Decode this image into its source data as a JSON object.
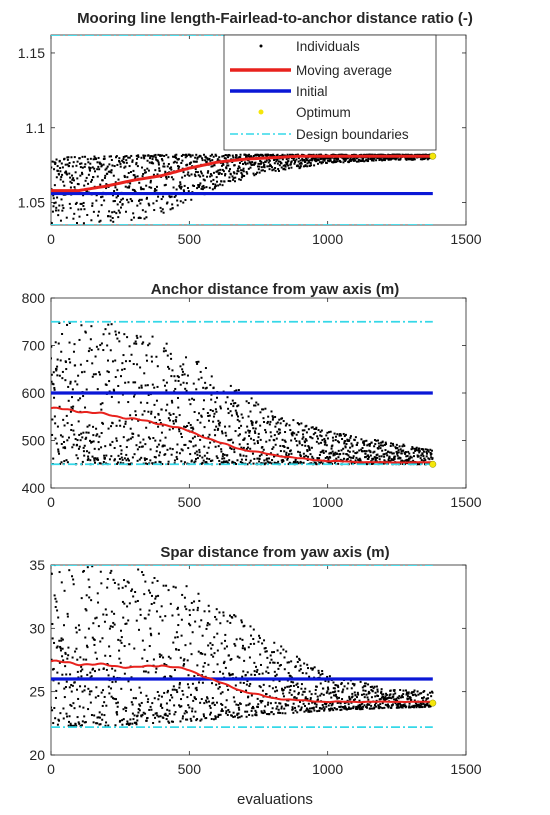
{
  "chart_data": [
    {
      "type": "scatter",
      "title": "Mooring line length-Fairlead-to-anchor distance ratio (-)",
      "xlabel": "",
      "ylabel": "",
      "xlim": [
        0,
        1500
      ],
      "ylim": [
        1.035,
        1.162
      ],
      "xticks": [
        0,
        500,
        1000,
        1500
      ],
      "yticks": [
        1.05,
        1.1,
        1.15
      ],
      "xtick_labels": [
        "0",
        "500",
        "1000",
        "1500"
      ],
      "ytick_labels": [
        "1.05",
        "1.1",
        "1.15"
      ],
      "grid": false,
      "legend": {
        "placement": "top-right",
        "entries": [
          "Individuals",
          "Moving average",
          "Initial",
          "Optimum",
          "Design boundaries"
        ]
      },
      "series": [
        {
          "name": "Individuals",
          "kind": "scatter",
          "color": "#000000",
          "n_points": 1380,
          "envelope": {
            "x": [
              0,
              200,
              400,
              600,
              800,
              1000,
              1200,
              1380
            ],
            "low": [
              1.036,
              1.036,
              1.04,
              1.06,
              1.07,
              1.076,
              1.078,
              1.079
            ],
            "high": [
              1.08,
              1.081,
              1.082,
              1.082,
              1.082,
              1.082,
              1.082,
              1.082
            ]
          }
        },
        {
          "name": "Moving average",
          "kind": "line",
          "color": "#e8221d",
          "x": [
            0,
            100,
            200,
            300,
            400,
            500,
            600,
            700,
            800,
            900,
            1000,
            1100,
            1200,
            1300,
            1380
          ],
          "y": [
            1.058,
            1.058,
            1.061,
            1.065,
            1.068,
            1.073,
            1.077,
            1.079,
            1.08,
            1.081,
            1.081,
            1.081,
            1.081,
            1.081,
            1.081
          ]
        },
        {
          "name": "Initial",
          "kind": "hline",
          "color": "#0a17d6",
          "x": [
            0,
            1380
          ],
          "y": 1.056
        },
        {
          "name": "Optimum",
          "kind": "point",
          "color": "#f5e60a",
          "x": 1380,
          "y": 1.081
        },
        {
          "name": "Design boundaries",
          "kind": "hlines",
          "color": "#35d8e8",
          "x": [
            0,
            1380
          ],
          "y": [
            1.035,
            1.162
          ]
        }
      ]
    },
    {
      "type": "scatter",
      "title": "Anchor distance from yaw axis (m)",
      "xlabel": "",
      "ylabel": "",
      "xlim": [
        0,
        1500
      ],
      "ylim": [
        400,
        800
      ],
      "xticks": [
        0,
        500,
        1000,
        1500
      ],
      "yticks": [
        400,
        500,
        600,
        700,
        800
      ],
      "xtick_labels": [
        "0",
        "500",
        "1000",
        "1500"
      ],
      "ytick_labels": [
        "400",
        "500",
        "600",
        "700",
        "800"
      ],
      "grid": false,
      "series": [
        {
          "name": "Individuals",
          "kind": "scatter",
          "color": "#000000",
          "n_points": 1380,
          "envelope": {
            "x": [
              0,
              200,
              400,
              600,
              800,
              1000,
              1200,
              1380
            ],
            "low": [
              450,
              450,
              450,
              450,
              450,
              450,
              450,
              450
            ],
            "high": [
              750,
              750,
              720,
              640,
              560,
              520,
              500,
              480
            ]
          }
        },
        {
          "name": "Moving average",
          "kind": "line",
          "color": "#e8221d",
          "x": [
            0,
            100,
            200,
            300,
            400,
            500,
            600,
            700,
            800,
            900,
            1000,
            1100,
            1200,
            1300,
            1380
          ],
          "y": [
            568,
            562,
            555,
            545,
            535,
            520,
            497,
            480,
            470,
            462,
            457,
            455,
            454,
            454,
            454
          ]
        },
        {
          "name": "Initial",
          "kind": "hline",
          "color": "#0a17d6",
          "x": [
            0,
            1380
          ],
          "y": 600
        },
        {
          "name": "Optimum",
          "kind": "point",
          "color": "#f5e60a",
          "x": 1380,
          "y": 450
        },
        {
          "name": "Design boundaries",
          "kind": "hlines",
          "color": "#35d8e8",
          "x": [
            0,
            1380
          ],
          "y": [
            450,
            750
          ]
        }
      ]
    },
    {
      "type": "scatter",
      "title": "Spar distance from yaw axis (m)",
      "xlabel": "evaluations",
      "ylabel": "",
      "xlim": [
        0,
        1500
      ],
      "ylim": [
        20,
        35
      ],
      "xticks": [
        0,
        500,
        1000,
        1500
      ],
      "yticks": [
        20,
        25,
        30,
        35
      ],
      "xtick_labels": [
        "0",
        "500",
        "1000",
        "1500"
      ],
      "ytick_labels": [
        "20",
        "25",
        "30",
        "35"
      ],
      "grid": false,
      "series": [
        {
          "name": "Individuals",
          "kind": "scatter",
          "color": "#000000",
          "n_points": 1380,
          "envelope": {
            "x": [
              0,
              200,
              400,
              600,
              800,
              1000,
              1200,
              1380
            ],
            "low": [
              22.3,
              22.3,
              22.5,
              22.8,
              23.2,
              23.5,
              23.7,
              23.8
            ],
            "high": [
              35,
              35,
              34.5,
              32,
              29,
              26.5,
              25.3,
              25
            ]
          }
        },
        {
          "name": "Moving average",
          "kind": "line",
          "color": "#e8221d",
          "x": [
            0,
            100,
            200,
            300,
            400,
            500,
            600,
            700,
            800,
            900,
            1000,
            1100,
            1200,
            1300,
            1380
          ],
          "y": [
            27.4,
            27.2,
            27.1,
            26.9,
            27.1,
            26.7,
            25.8,
            25.0,
            24.5,
            24.3,
            24.2,
            24.2,
            24.2,
            24.2,
            24.2
          ]
        },
        {
          "name": "Initial",
          "kind": "hline",
          "color": "#0a17d6",
          "x": [
            0,
            1380
          ],
          "y": 26
        },
        {
          "name": "Optimum",
          "kind": "point",
          "color": "#f5e60a",
          "x": 1380,
          "y": 24.1
        },
        {
          "name": "Design boundaries",
          "kind": "hlines",
          "color": "#35d8e8",
          "x": [
            0,
            1380
          ],
          "y": [
            22.2,
            35
          ]
        }
      ]
    }
  ]
}
